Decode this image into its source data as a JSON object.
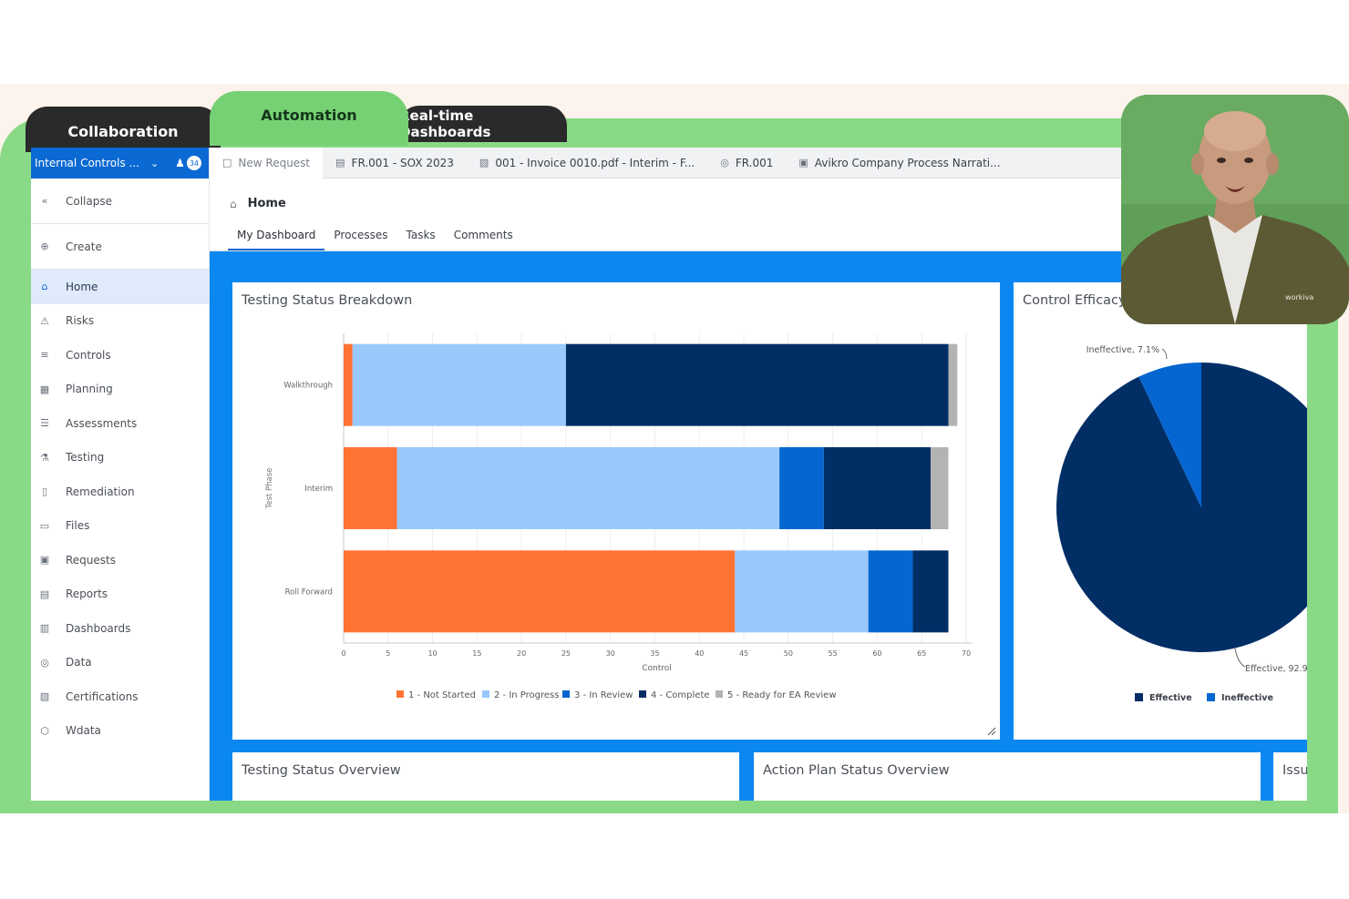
{
  "promo_tabs": [
    "Collaboration",
    "Automation",
    "Real-time Dashboards"
  ],
  "workspace": {
    "name": "Internal Controls ...",
    "badge": "34"
  },
  "sidebar": {
    "items": [
      {
        "label": "Collapse",
        "icon": "double-chevron-left-icon"
      },
      {
        "label": "Create",
        "icon": "plus-circle-icon"
      },
      {
        "label": "Home",
        "icon": "home-icon",
        "active": true
      },
      {
        "label": "Risks",
        "icon": "warning-icon"
      },
      {
        "label": "Controls",
        "icon": "sliders-icon"
      },
      {
        "label": "Planning",
        "icon": "calendar-icon"
      },
      {
        "label": "Assessments",
        "icon": "list-icon"
      },
      {
        "label": "Testing",
        "icon": "flask-icon"
      },
      {
        "label": "Remediation",
        "icon": "clipboard-icon"
      },
      {
        "label": "Files",
        "icon": "folder-icon"
      },
      {
        "label": "Requests",
        "icon": "request-icon"
      },
      {
        "label": "Reports",
        "icon": "report-icon"
      },
      {
        "label": "Dashboards",
        "icon": "dashboard-icon"
      },
      {
        "label": "Data",
        "icon": "database-icon"
      },
      {
        "label": "Certifications",
        "icon": "certificate-icon"
      },
      {
        "label": "Wdata",
        "icon": "cube-icon"
      }
    ]
  },
  "doc_tabs": [
    {
      "label": "New Request",
      "icon": "new-request-icon"
    },
    {
      "label": "FR.001 - SOX 2023",
      "icon": "document-icon"
    },
    {
      "label": "001 - Invoice 0010.pdf - Interim - F...",
      "icon": "pdf-icon"
    },
    {
      "label": "FR.001",
      "icon": "database-icon"
    },
    {
      "label": "Avikro Company Process Narrati...",
      "icon": "narrative-icon"
    }
  ],
  "page": {
    "title": "Home",
    "subtabs": [
      "My Dashboard",
      "Processes",
      "Tasks",
      "Comments"
    ]
  },
  "cards": {
    "testing_status_breakdown": "Testing Status Breakdown",
    "control_efficacy": "Control Efficacy",
    "testing_status_overview": "Testing Status Overview",
    "action_plan_status_overview": "Action Plan Status Overview",
    "issues": "Issu"
  },
  "colors": {
    "not_started": "#ff7333",
    "in_progress": "#99c9fb",
    "in_review": "#0566d1",
    "complete": "#022e66",
    "ready_ea": "#b3b3b3",
    "effective": "#022e66",
    "ineffective": "#0566d1"
  },
  "chart_data": [
    {
      "type": "bar",
      "orientation": "horizontal",
      "stacked": true,
      "title": "Testing Status Breakdown",
      "xlabel": "Control",
      "ylabel": "Test Phase",
      "xlim": [
        0,
        70
      ],
      "xticks": [
        0,
        5,
        10,
        15,
        20,
        25,
        30,
        35,
        40,
        45,
        50,
        55,
        60,
        65,
        70
      ],
      "categories": [
        "Walkthrough",
        "Interim",
        "Roll Forward"
      ],
      "series": [
        {
          "name": "1 - Not Started",
          "values": [
            1,
            6,
            44
          ]
        },
        {
          "name": "2 - In Progress",
          "values": [
            24,
            43,
            15
          ]
        },
        {
          "name": "3 - In Review",
          "values": [
            0,
            5,
            5
          ]
        },
        {
          "name": "4 - Complete",
          "values": [
            43,
            12,
            4
          ]
        },
        {
          "name": "5 - Ready for EA Review",
          "values": [
            1,
            2,
            0
          ]
        }
      ],
      "legend_position": "bottom",
      "grid": true
    },
    {
      "type": "pie",
      "title": "Control Efficacy",
      "labels": [
        "Effective",
        "Ineffective"
      ],
      "values": [
        92.9,
        7.1
      ],
      "data_labels": [
        "Effective, 92.9",
        "Ineffective, 7.1%"
      ],
      "legend_position": "bottom"
    }
  ]
}
